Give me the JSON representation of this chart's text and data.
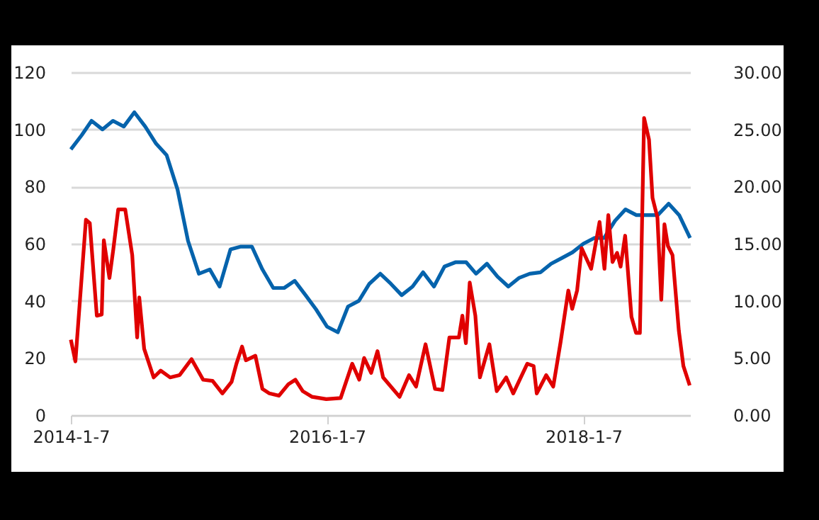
{
  "chart_data": {
    "type": "line",
    "xlim": [
      "2014-01-07",
      "2018-11-07"
    ],
    "xticks": [
      {
        "value": "2014-01-07",
        "label": "2014-1-7"
      },
      {
        "value": "2016-01-07",
        "label": "2016-1-7"
      },
      {
        "value": "2018-01-07",
        "label": "2018-1-7"
      }
    ],
    "ylim": [
      0,
      120
    ],
    "yticks": [
      0,
      20,
      40,
      60,
      80,
      100,
      120
    ],
    "y2lim": [
      0,
      30
    ],
    "y2ticks": [
      {
        "value": 0,
        "label": "0.00"
      },
      {
        "value": 5,
        "label": "5.00"
      },
      {
        "value": 10,
        "label": "10.00"
      },
      {
        "value": 15,
        "label": "15.00"
      },
      {
        "value": 20,
        "label": "20.00"
      },
      {
        "value": 25,
        "label": "25.00"
      },
      {
        "value": 30,
        "label": "30.00"
      }
    ],
    "grid": "y",
    "line_style": "solid",
    "marker": "none",
    "series": [
      {
        "color": "#0563ac",
        "x": [
          "2014-01-07",
          "2014-02-07",
          "2014-03-07",
          "2014-04-07",
          "2014-05-07",
          "2014-06-07",
          "2014-07-07",
          "2014-08-07",
          "2014-09-07",
          "2014-10-07",
          "2014-11-07",
          "2014-12-07",
          "2015-01-07",
          "2015-02-07",
          "2015-03-07",
          "2015-04-07",
          "2015-05-07",
          "2015-06-07",
          "2015-07-07",
          "2015-08-07",
          "2015-09-07",
          "2015-10-07",
          "2015-11-07",
          "2015-12-07",
          "2016-01-07",
          "2016-02-07",
          "2016-03-07",
          "2016-04-07",
          "2016-05-07",
          "2016-06-07",
          "2016-07-07",
          "2016-08-07",
          "2016-09-07",
          "2016-10-07",
          "2016-11-07",
          "2016-12-07",
          "2017-01-07",
          "2017-02-07",
          "2017-03-07",
          "2017-04-07",
          "2017-05-07",
          "2017-06-07",
          "2017-07-07",
          "2017-08-07",
          "2017-09-07",
          "2017-10-07",
          "2017-11-07",
          "2017-12-07",
          "2018-01-07",
          "2018-02-07",
          "2018-03-07",
          "2018-04-07",
          "2018-05-07",
          "2018-06-07",
          "2018-07-07",
          "2018-08-07",
          "2018-09-07",
          "2018-10-07",
          "2018-11-07"
        ],
        "values": [
          93,
          98,
          103,
          100,
          103,
          101,
          106,
          101,
          95,
          91,
          79,
          61,
          49.5,
          51,
          45,
          58,
          59,
          59,
          51,
          44.5,
          44.5,
          47,
          42,
          37,
          31,
          29,
          38,
          40,
          46,
          49.5,
          46,
          42,
          45,
          50,
          45,
          52,
          53.5,
          53.5,
          49.5,
          53,
          48.5,
          45,
          48,
          49.5,
          50,
          53,
          55,
          57,
          60,
          62,
          62,
          68,
          72,
          70,
          70,
          70,
          74,
          70,
          62
        ]
      },
      {
        "color": "#e00000",
        "axis": "y2",
        "x": [
          "2014-01-07",
          "2014-01-20",
          "2014-02-19",
          "2014-03-02",
          "2014-03-22",
          "2014-04-05",
          "2014-04-11",
          "2014-04-27",
          "2014-05-08",
          "2014-05-22",
          "2014-06-11",
          "2014-07-01",
          "2014-07-15",
          "2014-07-21",
          "2014-08-04",
          "2014-08-31",
          "2014-09-20",
          "2014-10-17",
          "2014-11-13",
          "2014-12-17",
          "2015-01-19",
          "2015-02-15",
          "2015-03-15",
          "2015-04-10",
          "2015-04-24",
          "2015-05-10",
          "2015-05-21",
          "2015-06-17",
          "2015-07-07",
          "2015-07-27",
          "2015-08-23",
          "2015-09-19",
          "2015-10-09",
          "2015-10-30",
          "2015-11-26",
          "2016-01-05",
          "2016-02-15",
          "2016-03-19",
          "2016-04-08",
          "2016-04-22",
          "2016-05-12",
          "2016-05-30",
          "2016-06-15",
          "2016-08-01",
          "2016-08-28",
          "2016-09-17",
          "2016-10-14",
          "2016-11-10",
          "2016-12-01",
          "2016-12-21",
          "2017-01-17",
          "2017-01-27",
          "2017-02-06",
          "2017-02-17",
          "2017-03-05",
          "2017-03-18",
          "2017-04-14",
          "2017-05-05",
          "2017-06-01",
          "2017-06-21",
          "2017-07-31",
          "2017-08-18",
          "2017-08-27",
          "2017-09-23",
          "2017-10-13",
          "2017-11-03",
          "2017-11-25",
          "2017-12-06",
          "2017-12-20",
          "2018-01-02",
          "2018-01-29",
          "2018-02-22",
          "2018-03-08",
          "2018-03-19",
          "2018-03-31",
          "2018-04-13",
          "2018-04-23",
          "2018-05-06",
          "2018-05-24",
          "2018-06-06",
          "2018-06-17",
          "2018-06-29",
          "2018-07-13",
          "2018-07-23",
          "2018-08-06",
          "2018-08-17",
          "2018-08-26",
          "2018-09-05",
          "2018-09-18",
          "2018-10-06",
          "2018-10-19",
          "2018-11-06"
        ],
        "values": [
          6.6,
          4.7,
          17.1,
          16.8,
          8.7,
          8.8,
          15.3,
          12,
          14.5,
          18,
          18,
          14,
          6.8,
          10.3,
          5.8,
          3.3,
          3.9,
          3.3,
          3.5,
          4.9,
          3.1,
          3,
          1.9,
          2.9,
          4.5,
          6,
          4.8,
          5.2,
          2.3,
          1.9,
          1.7,
          2.7,
          3.1,
          2.1,
          1.6,
          1.4,
          1.5,
          4.5,
          3.1,
          5,
          3.7,
          5.6,
          3.3,
          1.6,
          3.5,
          2.5,
          6.2,
          2.3,
          2.2,
          6.8,
          6.8,
          8.7,
          6.3,
          11.6,
          8.7,
          3.3,
          6.2,
          2.1,
          3.3,
          1.9,
          4.5,
          4.3,
          1.9,
          3.5,
          2.5,
          6.4,
          10.9,
          9.3,
          10.9,
          14.6,
          12.8,
          16.9,
          12.8,
          17.5,
          13.4,
          14.2,
          13,
          15.7,
          8.6,
          7.2,
          7.2,
          26,
          24.1,
          19,
          17.3,
          10.1,
          16.7,
          14.8,
          14,
          7.4,
          4.3,
          2.6
        ]
      }
    ]
  }
}
